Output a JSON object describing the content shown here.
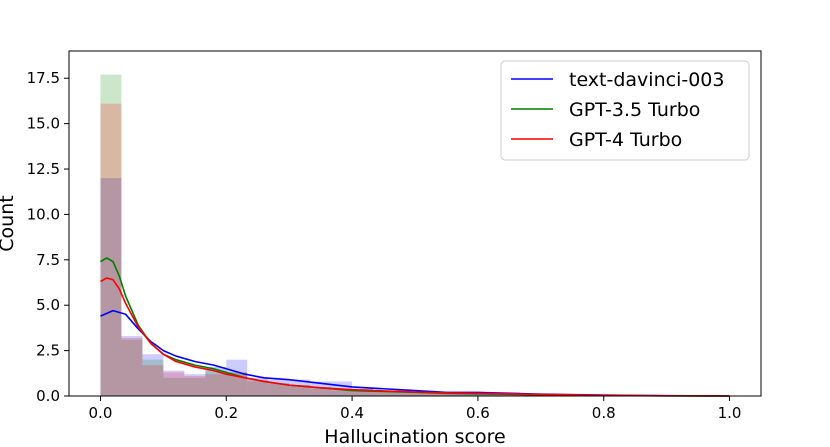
{
  "chart_data": {
    "type": "bar",
    "title": "",
    "xlabel": "Hallucination score",
    "ylabel": "Count",
    "xlim": [
      -0.05,
      1.05
    ],
    "ylim": [
      0,
      19
    ],
    "xticks": [
      0.0,
      0.2,
      0.4,
      0.6,
      0.8,
      1.0
    ],
    "xtick_labels": [
      "0.0",
      "0.2",
      "0.4",
      "0.6",
      "0.8",
      "1.0"
    ],
    "yticks": [
      0.0,
      2.5,
      5.0,
      7.5,
      10.0,
      12.5,
      15.0,
      17.5
    ],
    "ytick_labels": [
      "0.0",
      "2.5",
      "5.0",
      "7.5",
      "10.0",
      "12.5",
      "15.0",
      "17.5"
    ],
    "grid": false,
    "legend_position": "top-right",
    "bin_edges": [
      0.0,
      0.0333,
      0.0667,
      0.1,
      0.1333,
      0.1667,
      0.2,
      0.2333,
      0.2667,
      0.3,
      0.3333,
      0.3667,
      0.4,
      0.4333,
      0.4667,
      0.5,
      0.5333,
      0.5667,
      0.6,
      0.6333,
      0.6667,
      0.7,
      0.7333,
      0.7667,
      0.8,
      0.8333,
      0.8667,
      0.9,
      0.9333,
      0.9667,
      1.0
    ],
    "histograms": [
      {
        "name": "text-davinci-003",
        "color": "#0000ff",
        "counts": [
          12.0,
          3.3,
          2.3,
          1.4,
          1.2,
          1.6,
          2.0,
          1.0,
          0.9,
          0.9,
          0.8,
          0.8,
          0.4,
          0.3,
          0.3,
          0.3,
          0.2,
          0.2,
          0.2,
          0.2,
          0.1,
          0.1,
          0.1,
          0.0,
          0.0,
          0.0,
          0.0,
          0.0,
          0.0,
          0.0
        ]
      },
      {
        "name": "GPT-3.5 Turbo",
        "color": "#008000",
        "counts": [
          17.7,
          3.1,
          2.0,
          1.0,
          1.0,
          1.4,
          1.3,
          0.8,
          0.7,
          0.6,
          0.4,
          0.3,
          0.3,
          0.3,
          0.2,
          0.2,
          0.2,
          0.2,
          0.1,
          0.1,
          0.1,
          0.0,
          0.0,
          0.0,
          0.0,
          0.0,
          0.0,
          0.0,
          0.0,
          0.0
        ]
      },
      {
        "name": "GPT-4 Turbo",
        "color": "#ff0000",
        "counts": [
          16.1,
          3.2,
          1.7,
          1.3,
          1.1,
          1.2,
          1.3,
          0.9,
          0.7,
          0.6,
          0.5,
          0.4,
          0.4,
          0.3,
          0.3,
          0.2,
          0.2,
          0.2,
          0.2,
          0.1,
          0.1,
          0.1,
          0.0,
          0.0,
          0.0,
          0.0,
          0.0,
          0.0,
          0.0,
          0.0
        ]
      }
    ],
    "series": [
      {
        "name": "text-davinci-003",
        "color": "#0000ff",
        "type": "line",
        "x": [
          0.0,
          0.02,
          0.04,
          0.06,
          0.08,
          0.1,
          0.12,
          0.15,
          0.18,
          0.2,
          0.23,
          0.26,
          0.3,
          0.35,
          0.4,
          0.45,
          0.5,
          0.55,
          0.6,
          0.65,
          0.7,
          0.8,
          0.9,
          1.0
        ],
        "y": [
          4.4,
          4.7,
          4.5,
          3.7,
          3.0,
          2.5,
          2.2,
          1.9,
          1.7,
          1.5,
          1.2,
          1.0,
          0.9,
          0.7,
          0.5,
          0.4,
          0.3,
          0.2,
          0.2,
          0.15,
          0.1,
          0.05,
          0.02,
          0.0
        ]
      },
      {
        "name": "GPT-3.5 Turbo",
        "color": "#008000",
        "type": "line",
        "x": [
          0.0,
          0.01,
          0.02,
          0.03,
          0.04,
          0.06,
          0.08,
          0.1,
          0.12,
          0.15,
          0.18,
          0.2,
          0.23,
          0.26,
          0.3,
          0.35,
          0.4,
          0.45,
          0.5,
          0.55,
          0.6,
          0.65,
          0.7,
          0.8,
          0.9,
          1.0
        ],
        "y": [
          7.4,
          7.6,
          7.4,
          6.6,
          5.5,
          3.9,
          2.9,
          2.3,
          2.0,
          1.7,
          1.5,
          1.3,
          1.0,
          0.8,
          0.6,
          0.45,
          0.3,
          0.25,
          0.2,
          0.15,
          0.12,
          0.1,
          0.06,
          0.03,
          0.01,
          0.0
        ]
      },
      {
        "name": "GPT-4 Turbo",
        "color": "#ff0000",
        "type": "line",
        "x": [
          0.0,
          0.01,
          0.02,
          0.03,
          0.04,
          0.06,
          0.08,
          0.1,
          0.12,
          0.15,
          0.18,
          0.2,
          0.23,
          0.26,
          0.3,
          0.35,
          0.4,
          0.45,
          0.5,
          0.55,
          0.6,
          0.65,
          0.7,
          0.8,
          0.9,
          1.0
        ],
        "y": [
          6.3,
          6.5,
          6.4,
          5.9,
          5.1,
          3.8,
          2.9,
          2.3,
          1.9,
          1.6,
          1.4,
          1.2,
          1.0,
          0.8,
          0.6,
          0.45,
          0.35,
          0.28,
          0.22,
          0.17,
          0.15,
          0.12,
          0.08,
          0.04,
          0.01,
          0.0
        ]
      }
    ],
    "legend": [
      {
        "name": "text-davinci-003",
        "color": "#0000ff"
      },
      {
        "name": "GPT-3.5 Turbo",
        "color": "#008000"
      },
      {
        "name": "GPT-4 Turbo",
        "color": "#ff0000"
      }
    ]
  }
}
